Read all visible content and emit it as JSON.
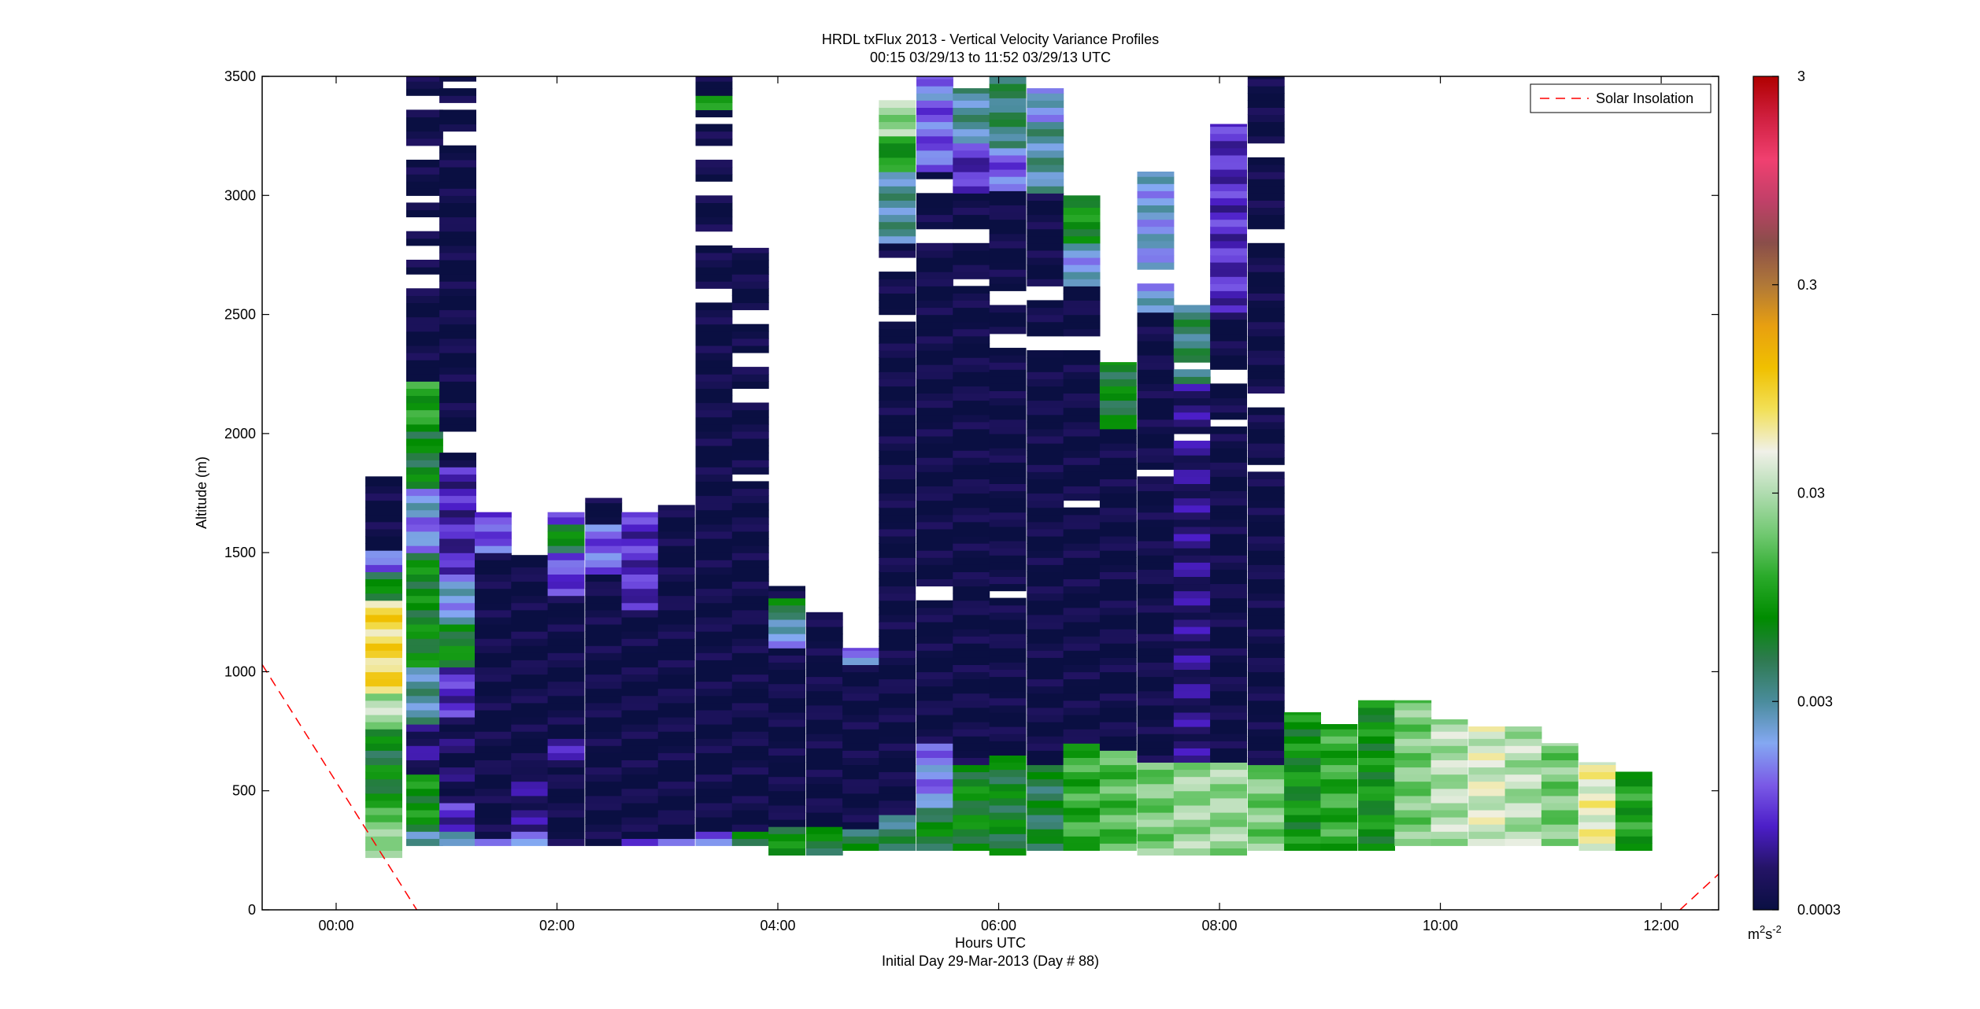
{
  "chart_data": {
    "type": "heatmap",
    "title": "HRDL txFlux 2013 - Vertical Velocity Variance Profiles",
    "subtitle": "00:15 03/29/13 to 11:52 03/29/13  UTC",
    "xlabel": "Hours UTC",
    "xlabel2": "Initial Day 29-Mar-2013 (Day # 88)",
    "ylabel": "Altitude (m)",
    "xlim_hours": [
      -0.67,
      12.52
    ],
    "ylim": [
      0,
      3500
    ],
    "x_ticks": [
      {
        "hour": 0,
        "label": "00:00"
      },
      {
        "hour": 2,
        "label": "02:00"
      },
      {
        "hour": 4,
        "label": "04:00"
      },
      {
        "hour": 6,
        "label": "06:00"
      },
      {
        "hour": 8,
        "label": "08:00"
      },
      {
        "hour": 10,
        "label": "10:00"
      },
      {
        "hour": 12,
        "label": "12:00"
      }
    ],
    "y_ticks": [
      0,
      500,
      1000,
      1500,
      2000,
      2500,
      3000,
      3500
    ],
    "legend": {
      "entries": [
        "Solar Insolation"
      ],
      "placement": "top-right",
      "line_color": "#ff0000",
      "line_style": "dashed"
    },
    "colorbar": {
      "scale": "log",
      "range": [
        0.0003,
        3
      ],
      "tick_values": [
        0.0003,
        0.003,
        0.03,
        0.3,
        3
      ],
      "tick_labels": [
        "0.0003",
        "0.003",
        "0.03",
        "0.3",
        "3"
      ],
      "unit_label": "m2s-2",
      "unit_base": "m",
      "unit_exp1": "2",
      "unit_mid": "s",
      "unit_exp2": "-2",
      "color_stops": [
        "#0a0f42",
        "#241466",
        "#4c1ec8",
        "#7a5ae6",
        "#84a8f2",
        "#4a8c9c",
        "#2e7a50",
        "#008c00",
        "#2aaa2a",
        "#70c870",
        "#b0dcb0",
        "#f0f0e8",
        "#f2e058",
        "#f0c000",
        "#e8a010",
        "#b07838",
        "#8a4e4a",
        "#c04068",
        "#f04070",
        "#d02040",
        "#b00000"
      ]
    },
    "solar_insolation": [
      {
        "hour": -0.67,
        "altitude": 1030
      },
      {
        "hour": 0.73,
        "altitude": 0
      }
    ],
    "solar_insolation_2": [
      {
        "hour": 12.17,
        "altitude": 0
      },
      {
        "hour": 12.52,
        "altitude": 150
      }
    ],
    "gate_spacing_m": 30,
    "profile_width_h": 0.33,
    "profiles": [
      {
        "t": 0.43,
        "top": 1820,
        "segs": [
          [
            220,
            270,
            0.031
          ],
          [
            270,
            420,
            0.02
          ],
          [
            420,
            600,
            0.007
          ],
          [
            600,
            760,
            0.006
          ],
          [
            760,
            900,
            0.028
          ],
          [
            900,
            1300,
            0.08
          ],
          [
            1300,
            1420,
            0.006
          ],
          [
            1420,
            1500,
            0.0012
          ],
          [
            1500,
            1820,
            0.0003
          ]
        ]
      },
      {
        "t": 0.8,
        "top": 3500,
        "segs": [
          [
            270,
            320,
            0.0025
          ],
          [
            320,
            560,
            0.008
          ],
          [
            560,
            780,
            0.0005
          ],
          [
            780,
            1000,
            0.003
          ],
          [
            1000,
            1500,
            0.007
          ],
          [
            1500,
            1650,
            0.0015
          ],
          [
            1650,
            1750,
            0.002
          ],
          [
            1750,
            2000,
            0.006
          ],
          [
            2000,
            2200,
            0.01
          ],
          [
            2200,
            3500,
            0.0003
          ]
        ],
        "gaps": [
          [
            2600,
            2650
          ],
          [
            2720,
            2770
          ],
          [
            2850,
            2900
          ],
          [
            2960,
            3000
          ],
          [
            3150,
            3200
          ],
          [
            3350,
            3400
          ]
        ],
        "caps": [
          [
            3350,
            3390,
            0.0009
          ],
          [
            3390,
            3420,
            0.0012
          ]
        ]
      },
      {
        "t": 1.1,
        "top": 3500,
        "segs": [
          [
            270,
            320,
            0.002
          ],
          [
            320,
            450,
            0.0008
          ],
          [
            450,
            800,
            0.0004
          ],
          [
            800,
            1000,
            0.0008
          ],
          [
            1000,
            1200,
            0.007
          ],
          [
            1200,
            1400,
            0.002
          ],
          [
            1400,
            1700,
            0.0007
          ],
          [
            1700,
            1850,
            0.0007
          ],
          [
            1850,
            3500,
            0.0003
          ]
        ],
        "gaps": [
          [
            1900,
            2000
          ],
          [
            3200,
            3250
          ],
          [
            3350,
            3390
          ],
          [
            3430,
            3470
          ]
        ]
      },
      {
        "t": 1.42,
        "top": 1670,
        "segs": [
          [
            270,
            300,
            0.002
          ],
          [
            300,
            1500,
            0.0003
          ],
          [
            1500,
            1620,
            0.0012
          ],
          [
            1620,
            1670,
            0.0008
          ]
        ]
      },
      {
        "t": 1.75,
        "top": 1490,
        "segs": [
          [
            270,
            320,
            0.002
          ],
          [
            320,
            600,
            0.0005
          ],
          [
            600,
            1490,
            0.0003
          ]
        ]
      },
      {
        "t": 2.08,
        "top": 1670,
        "segs": [
          [
            270,
            600,
            0.0003
          ],
          [
            600,
            700,
            0.0006
          ],
          [
            700,
            1300,
            0.0003
          ],
          [
            1300,
            1500,
            0.001
          ],
          [
            1500,
            1600,
            0.006
          ],
          [
            1600,
            1670,
            0.0012
          ]
        ]
      },
      {
        "t": 2.42,
        "top": 1730,
        "segs": [
          [
            270,
            600,
            0.0003
          ],
          [
            600,
            1400,
            0.0003
          ],
          [
            1400,
            1600,
            0.0012
          ],
          [
            1600,
            1730,
            0.0003
          ]
        ]
      },
      {
        "t": 2.75,
        "top": 1670,
        "segs": [
          [
            270,
            300,
            0.0012
          ],
          [
            300,
            1250,
            0.0003
          ],
          [
            1250,
            1500,
            0.0008
          ],
          [
            1500,
            1670,
            0.0008
          ]
        ]
      },
      {
        "t": 3.08,
        "top": 1700,
        "segs": [
          [
            270,
            300,
            0.0012
          ],
          [
            300,
            1700,
            0.0003
          ]
        ]
      },
      {
        "t": 3.42,
        "top": 3500,
        "segs": [
          [
            270,
            300,
            0.0012
          ],
          [
            300,
            330,
            0.0007
          ],
          [
            330,
            3350,
            0.0003
          ],
          [
            3350,
            3400,
            0.008
          ],
          [
            3400,
            3500,
            0.0003
          ]
        ],
        "gaps": [
          [
            2550,
            2600
          ],
          [
            2780,
            2850
          ],
          [
            3000,
            3050
          ],
          [
            3130,
            3200
          ],
          [
            3280,
            3330
          ]
        ]
      },
      {
        "t": 3.75,
        "top": 2780,
        "segs": [
          [
            270,
            320,
            0.006
          ],
          [
            320,
            1400,
            0.0003
          ],
          [
            1400,
            2780,
            0.0003
          ]
        ],
        "gaps": [
          [
            1800,
            1830
          ],
          [
            2130,
            2170
          ],
          [
            2280,
            2330
          ],
          [
            2450,
            2500
          ]
        ]
      },
      {
        "t": 4.08,
        "top": 1360,
        "segs": [
          [
            230,
            330,
            0.007
          ],
          [
            330,
            1100,
            0.0003
          ],
          [
            1100,
            1200,
            0.002
          ],
          [
            1200,
            1300,
            0.006
          ],
          [
            1300,
            1360,
            0.0003
          ]
        ]
      },
      {
        "t": 4.42,
        "top": 1250,
        "segs": [
          [
            230,
            330,
            0.006
          ],
          [
            330,
            1100,
            0.0003
          ],
          [
            1100,
            1250,
            0.0003
          ]
        ]
      },
      {
        "t": 4.75,
        "top": 1100,
        "segs": [
          [
            250,
            330,
            0.005
          ],
          [
            330,
            1030,
            0.0003
          ],
          [
            1030,
            1100,
            0.0015
          ]
        ]
      },
      {
        "t": 5.08,
        "top": 3400,
        "segs": [
          [
            250,
            400,
            0.004
          ],
          [
            400,
            2800,
            0.0003
          ],
          [
            2800,
            3100,
            0.003
          ],
          [
            3100,
            3250,
            0.009
          ],
          [
            3250,
            3400,
            0.025
          ]
        ],
        "gaps": [
          [
            2450,
            2500
          ],
          [
            2680,
            2720
          ]
        ]
      },
      {
        "t": 5.42,
        "top": 3500,
        "segs": [
          [
            250,
            420,
            0.006
          ],
          [
            420,
            700,
            0.0015
          ],
          [
            700,
            3100,
            0.0003
          ],
          [
            3100,
            3400,
            0.0012
          ],
          [
            3400,
            3500,
            0.0015
          ]
        ],
        "gaps": [
          [
            1300,
            1350
          ],
          [
            2800,
            2850
          ],
          [
            3000,
            3050
          ]
        ]
      },
      {
        "t": 5.75,
        "top": 3450,
        "segs": [
          [
            250,
            600,
            0.007
          ],
          [
            600,
            3000,
            0.0003
          ],
          [
            3000,
            3200,
            0.0008
          ],
          [
            3200,
            3450,
            0.003
          ]
        ],
        "gaps": [
          [
            2600,
            2650
          ],
          [
            2800,
            2850
          ]
        ]
      },
      {
        "t": 6.08,
        "top": 3500,
        "segs": [
          [
            230,
            650,
            0.006
          ],
          [
            650,
            3000,
            0.0003
          ],
          [
            3000,
            3200,
            0.0012
          ],
          [
            3200,
            3500,
            0.004
          ]
        ],
        "gaps": [
          [
            1300,
            1340
          ],
          [
            2350,
            2400
          ],
          [
            2520,
            2580
          ]
        ]
      },
      {
        "t": 6.42,
        "top": 3450,
        "segs": [
          [
            250,
            600,
            0.005
          ],
          [
            600,
            3000,
            0.0003
          ],
          [
            3000,
            3300,
            0.003
          ],
          [
            3300,
            3450,
            0.002
          ]
        ],
        "gaps": [
          [
            2350,
            2400
          ],
          [
            2550,
            2600
          ]
        ]
      },
      {
        "t": 6.75,
        "top": 3000,
        "segs": [
          [
            250,
            700,
            0.012
          ],
          [
            700,
            2600,
            0.0003
          ],
          [
            2600,
            2800,
            0.002
          ],
          [
            2800,
            3000,
            0.008
          ]
        ],
        "gaps": [
          [
            1690,
            1720
          ],
          [
            2350,
            2400
          ]
        ]
      },
      {
        "t": 7.08,
        "top": 2300,
        "segs": [
          [
            250,
            650,
            0.015
          ],
          [
            650,
            2000,
            0.0003
          ],
          [
            2000,
            2300,
            0.006
          ]
        ]
      },
      {
        "t": 7.42,
        "top": 3100,
        "segs": [
          [
            230,
            600,
            0.02
          ],
          [
            600,
            2500,
            0.0003
          ],
          [
            2500,
            3100,
            0.002
          ]
        ],
        "gaps": [
          [
            1800,
            1840
          ],
          [
            2630,
            2680
          ]
        ]
      },
      {
        "t": 7.75,
        "top": 2540,
        "segs": [
          [
            230,
            600,
            0.025
          ],
          [
            600,
            2200,
            0.0005
          ],
          [
            2200,
            2540,
            0.004
          ]
        ],
        "gaps": [
          [
            1950,
            2000
          ],
          [
            2250,
            2300
          ]
        ]
      },
      {
        "t": 8.08,
        "top": 3300,
        "segs": [
          [
            230,
            600,
            0.025
          ],
          [
            600,
            2500,
            0.0003
          ],
          [
            2500,
            3300,
            0.0008
          ]
        ],
        "gaps": [
          [
            2020,
            2050
          ],
          [
            2200,
            2250
          ]
        ]
      },
      {
        "t": 8.42,
        "top": 3500,
        "segs": [
          [
            250,
            600,
            0.02
          ],
          [
            600,
            1000,
            0.0003
          ],
          [
            1000,
            3500,
            0.0003
          ]
        ],
        "gaps": [
          [
            1830,
            1860
          ],
          [
            2100,
            2150
          ],
          [
            2800,
            2850
          ],
          [
            3150,
            3200
          ]
        ]
      },
      {
        "t": 8.75,
        "top": 830,
        "segs": [
          [
            250,
            830,
            0.008
          ]
        ]
      },
      {
        "t": 9.08,
        "top": 780,
        "segs": [
          [
            250,
            780,
            0.012
          ]
        ]
      },
      {
        "t": 9.42,
        "top": 880,
        "segs": [
          [
            250,
            880,
            0.008
          ]
        ]
      },
      {
        "t": 9.75,
        "top": 880,
        "segs": [
          [
            270,
            880,
            0.02
          ]
        ]
      },
      {
        "t": 10.08,
        "top": 800,
        "segs": [
          [
            270,
            800,
            0.03
          ]
        ]
      },
      {
        "t": 10.42,
        "top": 770,
        "segs": [
          [
            270,
            770,
            0.04
          ]
        ]
      },
      {
        "t": 10.75,
        "top": 770,
        "segs": [
          [
            270,
            770,
            0.03
          ]
        ]
      },
      {
        "t": 11.08,
        "top": 700,
        "segs": [
          [
            270,
            700,
            0.02
          ]
        ]
      },
      {
        "t": 11.42,
        "top": 620,
        "segs": [
          [
            250,
            620,
            0.05
          ]
        ]
      },
      {
        "t": 11.75,
        "top": 580,
        "segs": [
          [
            250,
            580,
            0.01
          ]
        ]
      }
    ]
  }
}
